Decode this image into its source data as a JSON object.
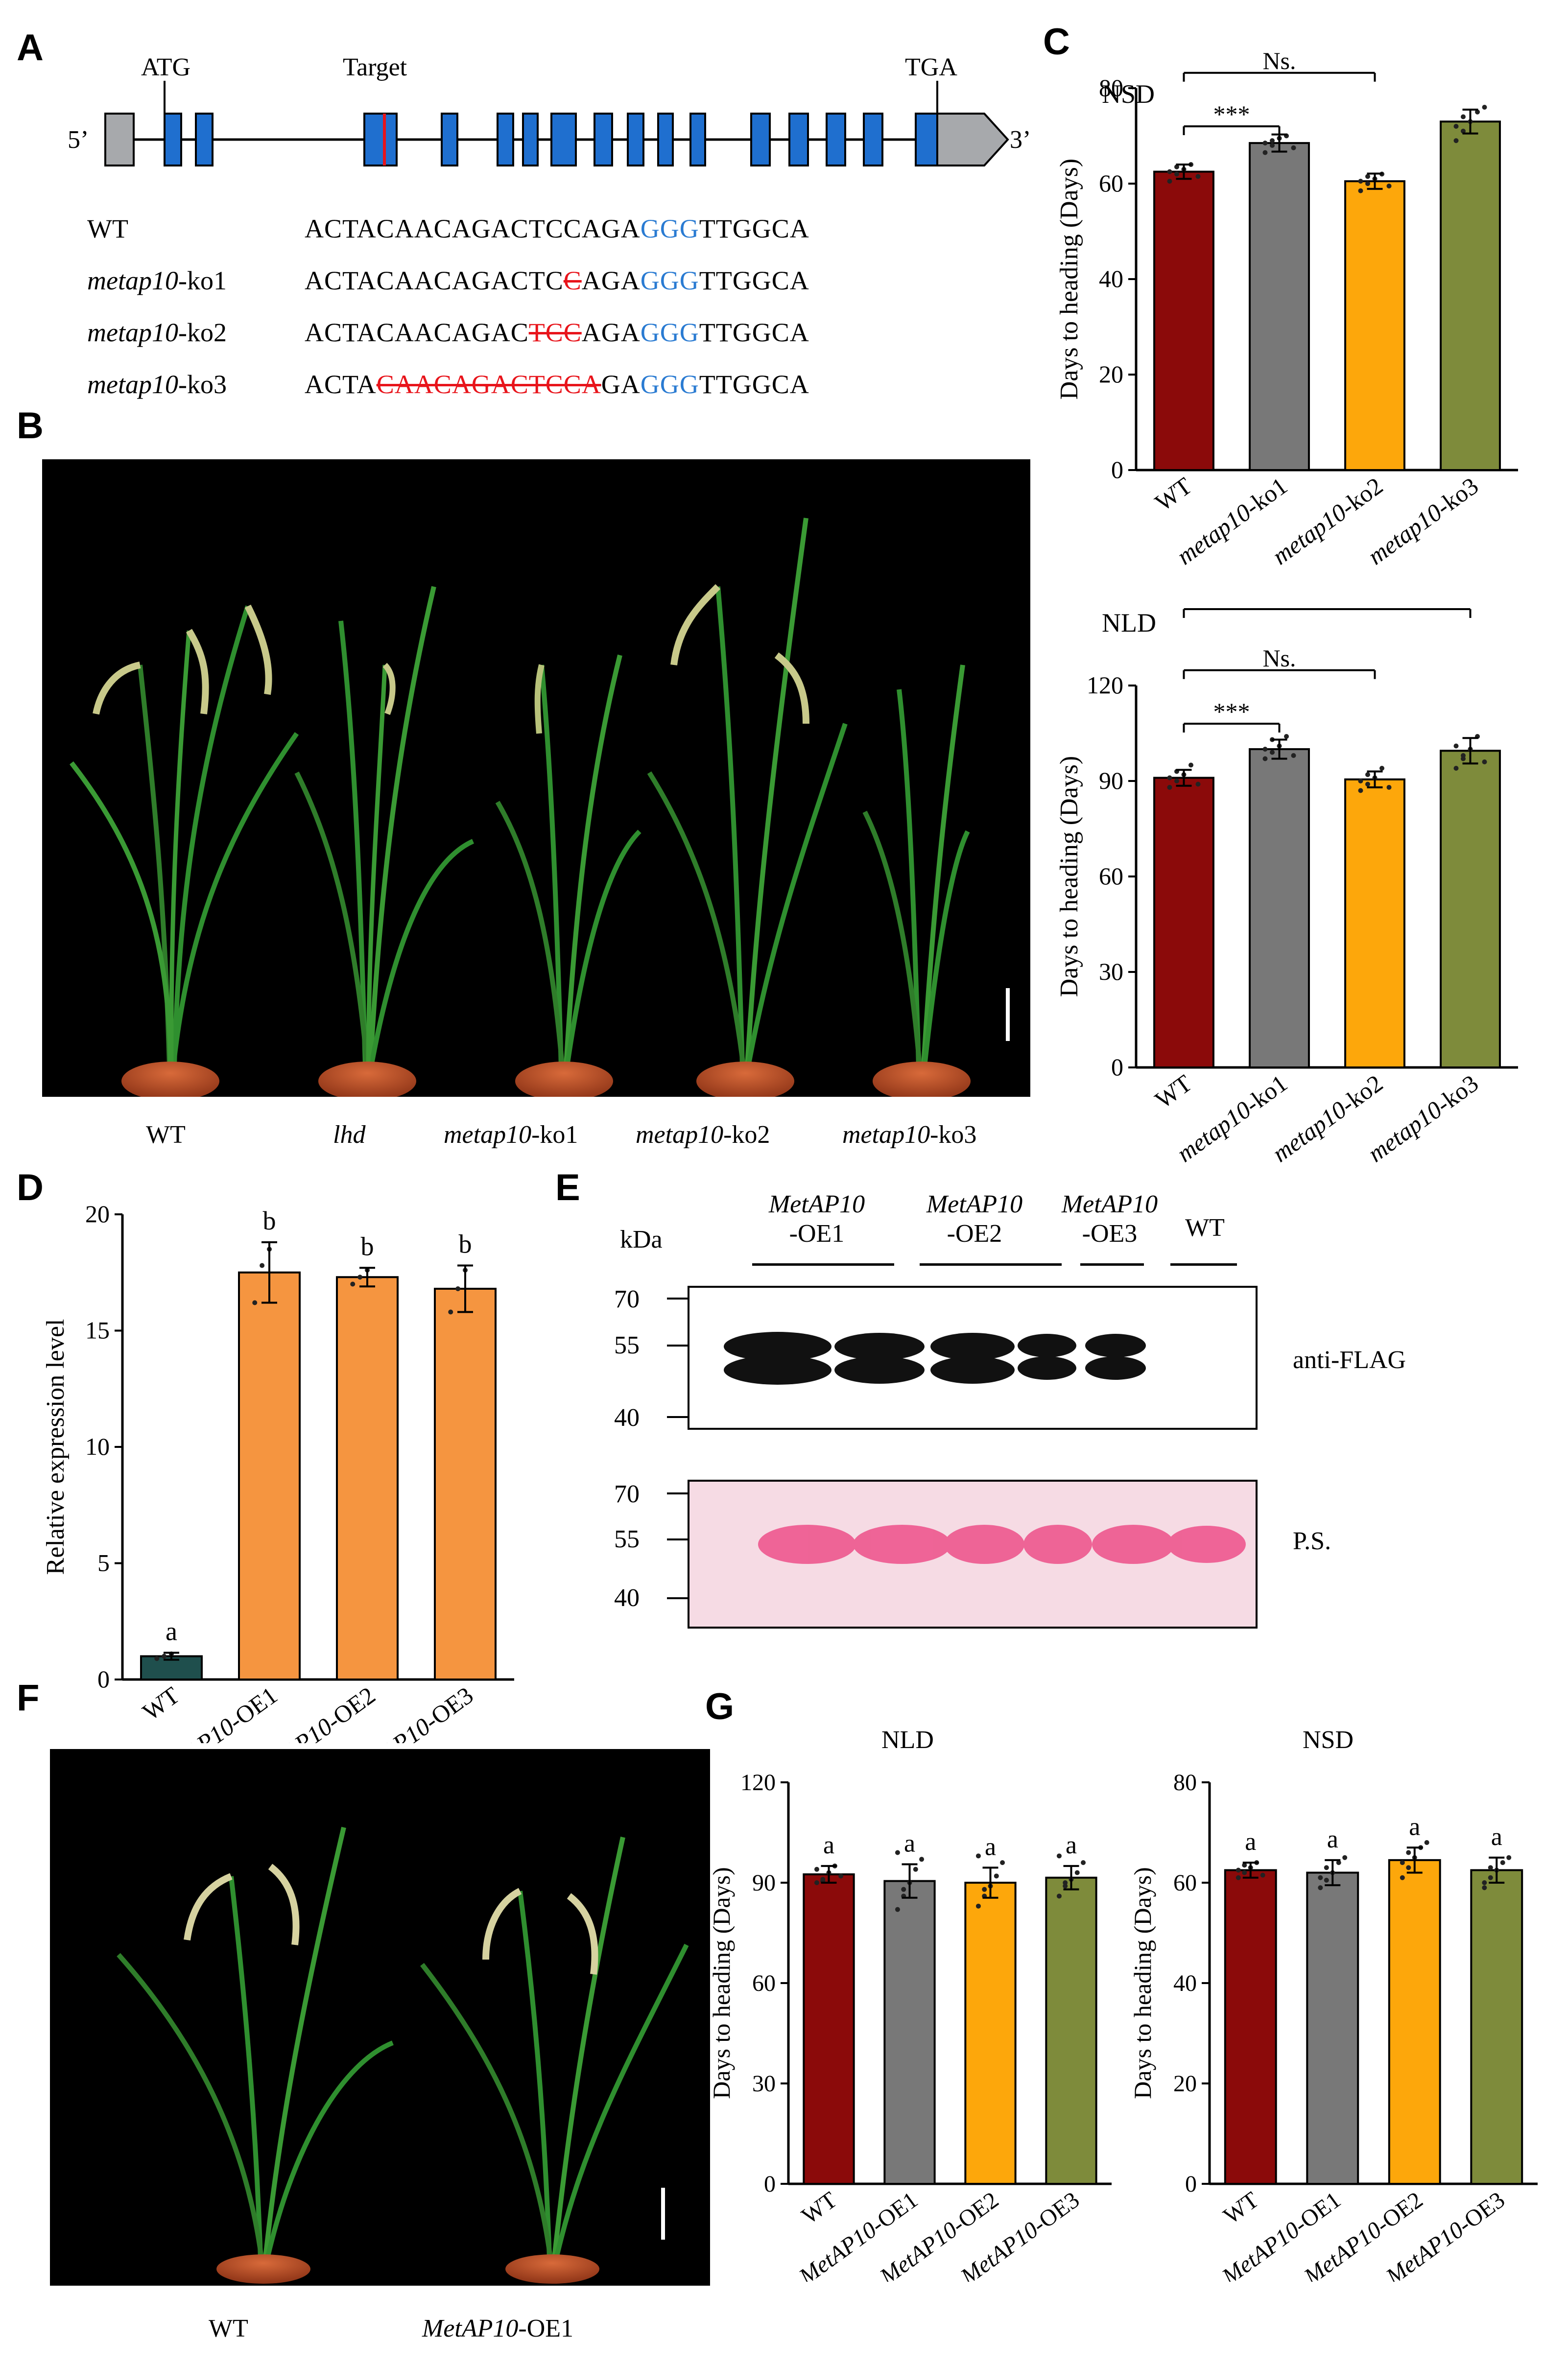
{
  "panels": {
    "A": "A",
    "B": "B",
    "C": "C",
    "D": "D",
    "E": "E",
    "F": "F",
    "G": "G"
  },
  "gene_model": {
    "label_5prime": "5’",
    "label_3prime": "3’",
    "atg": "ATG",
    "target": "Target",
    "tga": "TGA",
    "exon_color": "#1f6fcf",
    "utr_color": "#a7a9ac",
    "target_color": "#e8141b"
  },
  "sequences": [
    {
      "name_italic": "",
      "name_plain": "WT",
      "parts": [
        [
          "n",
          "ACTACAACAGACTCCAGA"
        ],
        [
          "p",
          "GGG"
        ],
        [
          "n",
          "TTGGCA"
        ]
      ]
    },
    {
      "name_italic": "metap10",
      "name_plain": "-ko1",
      "parts": [
        [
          "n",
          "ACTACAACAGACTC"
        ],
        [
          "d",
          "C"
        ],
        [
          "n",
          "AGA"
        ],
        [
          "p",
          "GGG"
        ],
        [
          "n",
          "TTGGCA"
        ]
      ]
    },
    {
      "name_italic": "metap10",
      "name_plain": "-ko2",
      "parts": [
        [
          "n",
          "ACTACAACAGAC"
        ],
        [
          "d",
          "TCC"
        ],
        [
          "n",
          "AGA"
        ],
        [
          "p",
          "GGG"
        ],
        [
          "n",
          "TTGGCA"
        ]
      ]
    },
    {
      "name_italic": "metap10",
      "name_plain": "-ko3",
      "parts": [
        [
          "n",
          "ACTA"
        ],
        [
          "d",
          "CAACAGACTCCA"
        ],
        [
          "n",
          "GA"
        ],
        [
          "p",
          "GGG"
        ],
        [
          "n",
          "TTGGCA"
        ]
      ]
    }
  ],
  "photo_B_labels": [
    {
      "italic": "",
      "plain": "WT"
    },
    {
      "italic": "lhd",
      "plain": ""
    },
    {
      "italic": "metap10",
      "plain": "-ko1"
    },
    {
      "italic": "metap10",
      "plain": "-ko2"
    },
    {
      "italic": "metap10",
      "plain": "-ko3"
    }
  ],
  "photo_F_labels": [
    {
      "italic": "",
      "plain": "WT"
    },
    {
      "italic": "MetAP10",
      "plain": "-OE1"
    }
  ],
  "blot": {
    "kda": "kDa",
    "groups": [
      {
        "line1": "MetAP10",
        "line2": "-OE1"
      },
      {
        "line1": "MetAP10",
        "line2": "-OE2"
      },
      {
        "line1": "MetAP10",
        "line2": "-OE3"
      },
      {
        "line1": "WT",
        "line2": ""
      }
    ],
    "top_markers": [
      "70",
      "55",
      "40"
    ],
    "bottom_markers": [
      "70",
      "55",
      "40"
    ],
    "top_label": "anti-FLAG",
    "bottom_label": "P.S."
  },
  "chart_data": [
    {
      "id": "C-NSD",
      "type": "bar",
      "title": "NSD",
      "ylabel": "Days to heading (Days)",
      "ylim": [
        0,
        80
      ],
      "yticks": [
        0,
        20,
        40,
        60,
        80
      ],
      "categories": [
        {
          "italic": "",
          "plain": "WT"
        },
        {
          "italic": "metap10",
          "plain": "-ko1"
        },
        {
          "italic": "metap10",
          "plain": "-ko2"
        },
        {
          "italic": "metap10",
          "plain": "-ko3"
        }
      ],
      "values": [
        62.5,
        68.5,
        60.5,
        73
      ],
      "errors": [
        1.5,
        1.8,
        1.6,
        2.5
      ],
      "colors": [
        "#8b0a0a",
        "#787878",
        "#fda70b",
        "#7e8b3b"
      ],
      "points": [
        [
          60.5,
          62,
          63,
          64,
          61.5,
          62.5,
          63.5
        ],
        [
          66.5,
          68,
          69.5,
          70,
          67.5,
          68.5,
          69
        ],
        [
          58.5,
          60,
          61,
          62,
          59.5,
          60.5,
          61.5
        ],
        [
          69,
          71,
          73,
          75,
          76,
          72,
          74
        ]
      ],
      "significance": [
        {
          "from": 0,
          "to": 1,
          "label": "***"
        },
        {
          "from": 0,
          "to": 2,
          "label": "Ns."
        },
        {
          "from": 0,
          "to": 3,
          "label": "***"
        }
      ]
    },
    {
      "id": "C-NLD",
      "type": "bar",
      "title": "NLD",
      "ylabel": "Days to heading (Days)",
      "ylim": [
        0,
        120
      ],
      "yticks": [
        0,
        30,
        60,
        90,
        120
      ],
      "categories": [
        {
          "italic": "",
          "plain": "WT"
        },
        {
          "italic": "metap10",
          "plain": "-ko1"
        },
        {
          "italic": "metap10",
          "plain": "-ko2"
        },
        {
          "italic": "metap10",
          "plain": "-ko3"
        }
      ],
      "values": [
        91,
        100,
        90.5,
        99.5
      ],
      "errors": [
        2.5,
        3,
        2.5,
        4
      ],
      "colors": [
        "#8b0a0a",
        "#787878",
        "#fda70b",
        "#7e8b3b"
      ],
      "points": [
        [
          88,
          90,
          92,
          95,
          89,
          91,
          93
        ],
        [
          97,
          99,
          101,
          104,
          98,
          100,
          103
        ],
        [
          87,
          89,
          91,
          94,
          88,
          90,
          92
        ],
        [
          94,
          97,
          100,
          104,
          96,
          101,
          98
        ]
      ],
      "significance": [
        {
          "from": 0,
          "to": 1,
          "label": "***"
        },
        {
          "from": 0,
          "to": 2,
          "label": "Ns."
        },
        {
          "from": 0,
          "to": 3,
          "label": "***"
        }
      ]
    },
    {
      "id": "D",
      "type": "bar",
      "title": "",
      "ylabel": "Relative expression level",
      "ylim": [
        0,
        20
      ],
      "yticks": [
        0,
        5,
        10,
        15,
        20
      ],
      "categories": [
        {
          "italic": "",
          "plain": "WT"
        },
        {
          "italic": "MetAP10",
          "plain": "-OE1"
        },
        {
          "italic": "MetAP10",
          "plain": "-OE2"
        },
        {
          "italic": "MetAP10",
          "plain": "-OE3"
        }
      ],
      "values": [
        1.0,
        17.5,
        17.3,
        16.8
      ],
      "errors": [
        0.15,
        1.3,
        0.4,
        1.0
      ],
      "colors": [
        "#1f4f4d",
        "#f59540",
        "#f59540",
        "#f59540"
      ],
      "points": [
        [
          0.9,
          1.0,
          1.1
        ],
        [
          16.2,
          17.8,
          18.5
        ],
        [
          17.0,
          17.3,
          17.6
        ],
        [
          15.8,
          16.8,
          17.6
        ]
      ],
      "letters": [
        "a",
        "b",
        "b",
        "b"
      ]
    },
    {
      "id": "G-NLD",
      "type": "bar",
      "title": "NLD",
      "ylabel": "Days to heading (Days)",
      "ylim": [
        0,
        120
      ],
      "yticks": [
        0,
        30,
        60,
        90,
        120
      ],
      "categories": [
        {
          "italic": "",
          "plain": "WT"
        },
        {
          "italic": "MetAP10",
          "plain": "-OE1"
        },
        {
          "italic": "MetAP10",
          "plain": "-OE2"
        },
        {
          "italic": "MetAP10",
          "plain": "-OE3"
        }
      ],
      "values": [
        92.5,
        90.5,
        90,
        91.5
      ],
      "errors": [
        2.5,
        5,
        4.5,
        3.5
      ],
      "colors": [
        "#8b0a0a",
        "#787878",
        "#fda70b",
        "#7e8b3b"
      ],
      "points": [
        [
          90,
          91,
          93,
          95,
          92,
          94,
          90.5
        ],
        [
          82,
          86,
          90,
          94,
          97,
          99,
          88
        ],
        [
          83,
          86,
          89,
          92,
          96,
          98,
          88
        ],
        [
          86,
          89,
          91,
          93,
          96,
          98,
          90
        ]
      ],
      "letters": [
        "a",
        "a",
        "a",
        "a"
      ]
    },
    {
      "id": "G-NSD",
      "type": "bar",
      "title": "NSD",
      "ylabel": "Days to heading (Days)",
      "ylim": [
        0,
        80
      ],
      "yticks": [
        0,
        20,
        40,
        60,
        80
      ],
      "categories": [
        {
          "italic": "",
          "plain": "WT"
        },
        {
          "italic": "MetAP10",
          "plain": "-OE1"
        },
        {
          "italic": "MetAP10",
          "plain": "-OE2"
        },
        {
          "italic": "MetAP10",
          "plain": "-OE3"
        }
      ],
      "values": [
        62.5,
        62,
        64.5,
        62.5
      ],
      "errors": [
        1.5,
        2.5,
        2.5,
        2.5
      ],
      "colors": [
        "#8b0a0a",
        "#787878",
        "#fda70b",
        "#7e8b3b"
      ],
      "points": [
        [
          61,
          62,
          63,
          64,
          61.5,
          62.5,
          63.5
        ],
        [
          59,
          60.5,
          62,
          64,
          65,
          61,
          63
        ],
        [
          61,
          63,
          65,
          67,
          68,
          64,
          66
        ],
        [
          59,
          61,
          62.5,
          64,
          65,
          60,
          63
        ]
      ],
      "letters": [
        "a",
        "a",
        "a",
        "a"
      ]
    }
  ]
}
